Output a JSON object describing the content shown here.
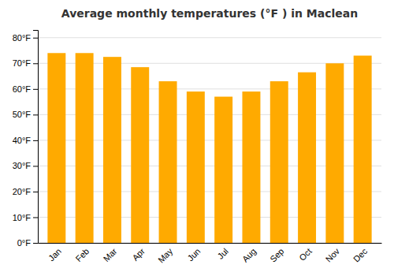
{
  "chart_data": {
    "type": "bar",
    "title": "Average monthly temperatures (°F ) in Maclean",
    "categories": [
      "Jan",
      "Feb",
      "Mar",
      "Apr",
      "May",
      "Jun",
      "Jul",
      "Aug",
      "Sep",
      "Oct",
      "Nov",
      "Dec"
    ],
    "values": [
      74.0,
      74.0,
      72.5,
      68.5,
      63.0,
      59.0,
      57.0,
      59.0,
      63.0,
      66.5,
      70.0,
      73.0
    ],
    "color": "#FFAA00",
    "ylim": [
      0,
      83
    ],
    "yticks": [
      {
        "value": 0,
        "label": "0°F"
      },
      {
        "value": 10,
        "label": "10°F"
      },
      {
        "value": 20,
        "label": "20°F"
      },
      {
        "value": 30,
        "label": "30°F"
      },
      {
        "value": 40,
        "label": "40°F"
      },
      {
        "value": 50,
        "label": "50°F"
      },
      {
        "value": 60,
        "label": "60°F"
      },
      {
        "value": 70,
        "label": "70°F"
      },
      {
        "value": 80,
        "label": "80°F"
      }
    ],
    "grid": true
  }
}
